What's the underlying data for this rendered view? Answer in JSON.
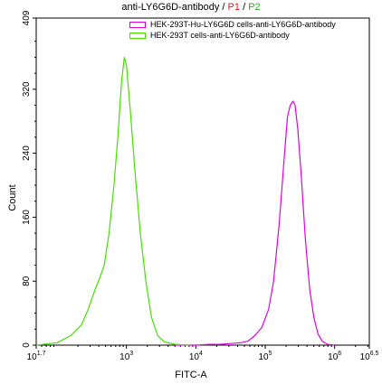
{
  "chart_data": {
    "type": "line",
    "title": {
      "text": "anti-LY6G6D-antibody / ",
      "p1": "P1",
      "sep": "/",
      "p2": "P2",
      "p1_color": "#d42020",
      "p2_color": "#2ea32e"
    },
    "xlabel": "FITC-A",
    "ylabel": "Count",
    "xscale": "log",
    "xlim_log10": [
      1.7,
      6.5
    ],
    "ylim": [
      0,
      409
    ],
    "x_ticks": [
      {
        "label_base": "10",
        "label_exp": "1.7",
        "log10": 1.7
      },
      {
        "label_base": "10",
        "label_exp": "3",
        "log10": 3
      },
      {
        "label_base": "10",
        "label_exp": "4",
        "log10": 4
      },
      {
        "label_base": "10",
        "label_exp": "5",
        "log10": 5
      },
      {
        "label_base": "10",
        "label_exp": "6",
        "log10": 6
      },
      {
        "label_base": "10",
        "label_exp": "6.5",
        "log10": 6.5
      }
    ],
    "y_ticks": [
      {
        "label": "0",
        "value": 0
      },
      {
        "label": "80",
        "value": 80
      },
      {
        "label": "160",
        "value": 160
      },
      {
        "label": "240",
        "value": 240
      },
      {
        "label": "320",
        "value": 320
      },
      {
        "label": "409",
        "value": 409
      }
    ],
    "legend_position": "top-right",
    "series": [
      {
        "name": "HEK-293T-Hu-LY6G6D cells-anti-LY6G6D-antibody",
        "color": "#e000e0",
        "points": [
          [
            3.7,
            0
          ],
          [
            4.0,
            0
          ],
          [
            4.2,
            1
          ],
          [
            4.35,
            1
          ],
          [
            4.5,
            2
          ],
          [
            4.65,
            3
          ],
          [
            4.75,
            5
          ],
          [
            4.85,
            12
          ],
          [
            4.95,
            22
          ],
          [
            5.05,
            45
          ],
          [
            5.12,
            80
          ],
          [
            5.2,
            150
          ],
          [
            5.27,
            230
          ],
          [
            5.32,
            285
          ],
          [
            5.36,
            300
          ],
          [
            5.4,
            305
          ],
          [
            5.43,
            300
          ],
          [
            5.47,
            270
          ],
          [
            5.52,
            210
          ],
          [
            5.58,
            130
          ],
          [
            5.64,
            70
          ],
          [
            5.7,
            35
          ],
          [
            5.76,
            14
          ],
          [
            5.82,
            5
          ],
          [
            5.9,
            1
          ],
          [
            6.0,
            0
          ]
        ]
      },
      {
        "name": "HEK-293T cells-anti-LY6G6D-antibody",
        "color": "#44e000",
        "points": [
          [
            1.7,
            0
          ],
          [
            2.0,
            3
          ],
          [
            2.2,
            12
          ],
          [
            2.35,
            25
          ],
          [
            2.45,
            45
          ],
          [
            2.55,
            70
          ],
          [
            2.62,
            85
          ],
          [
            2.68,
            100
          ],
          [
            2.75,
            140
          ],
          [
            2.82,
            200
          ],
          [
            2.88,
            265
          ],
          [
            2.93,
            330
          ],
          [
            2.97,
            360
          ],
          [
            3.0,
            350
          ],
          [
            3.05,
            300
          ],
          [
            3.12,
            220
          ],
          [
            3.2,
            140
          ],
          [
            3.28,
            80
          ],
          [
            3.36,
            35
          ],
          [
            3.45,
            12
          ],
          [
            3.55,
            4
          ],
          [
            3.7,
            1
          ],
          [
            3.9,
            0
          ]
        ]
      }
    ]
  }
}
